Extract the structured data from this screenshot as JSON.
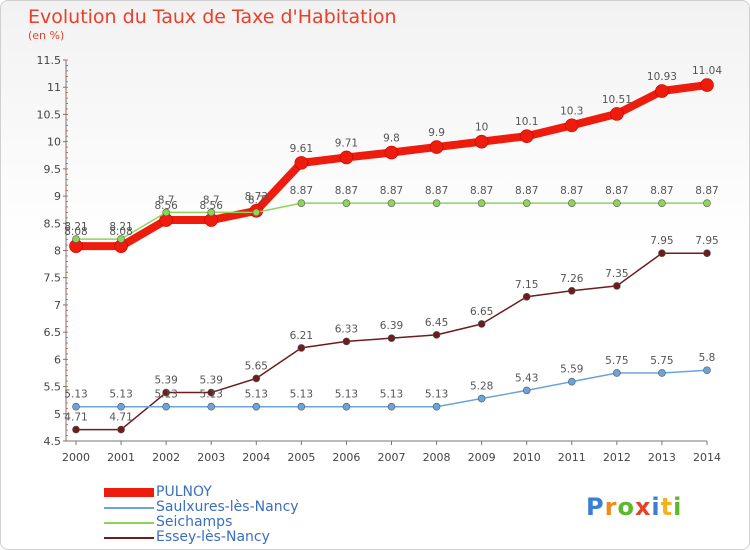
{
  "title": "Evolution du Taux de Taxe d'Habitation",
  "unit": "(en %)",
  "logo": {
    "letters": [
      {
        "ch": "P",
        "color": "#3a7fd0"
      },
      {
        "ch": "r",
        "color": "#f08a1c"
      },
      {
        "ch": "o",
        "color": "#5cb82c"
      },
      {
        "ch": "x",
        "color": "#e8402a"
      },
      {
        "ch": "i",
        "color": "#3a7fd0"
      },
      {
        "ch": "t",
        "color": "#f5b21c"
      },
      {
        "ch": "i",
        "color": "#5cb82c"
      }
    ]
  },
  "chart_data": {
    "type": "line",
    "x": [
      "2000",
      "2001",
      "2002",
      "2003",
      "2004",
      "2005",
      "2006",
      "2007",
      "2008",
      "2009",
      "2010",
      "2011",
      "2012",
      "2013",
      "2014"
    ],
    "ylim": [
      4.5,
      11.5
    ],
    "yticks": [
      "4.5",
      "5",
      "5.5",
      "6",
      "6.5",
      "7",
      "7.5",
      "8",
      "8.5",
      "9",
      "9.5",
      "10",
      "10.5",
      "11",
      "11.5"
    ],
    "grid": false,
    "legend_position": "bottom-left",
    "series": [
      {
        "name": "PULNOY",
        "color": "#ee1c0c",
        "values": [
          8.08,
          8.08,
          8.56,
          8.56,
          8.73,
          9.61,
          9.71,
          9.8,
          9.9,
          10,
          10.1,
          10.3,
          10.51,
          10.93,
          11.04
        ],
        "labels": [
          "8.08",
          "8.08",
          "8.56",
          "8.56",
          "8.73",
          "9.61",
          "9.71",
          "9.8",
          "9.9",
          "10",
          "10.1",
          "10.3",
          "10.51",
          "10.93",
          "11.04"
        ]
      },
      {
        "name": "Saulxures-lès-Nancy",
        "color": "#6aa4d8",
        "values": [
          5.13,
          5.13,
          5.13,
          5.13,
          5.13,
          5.13,
          5.13,
          5.13,
          5.13,
          5.28,
          5.43,
          5.59,
          5.75,
          5.75,
          5.8
        ],
        "labels": [
          "5.13",
          "5.13",
          "5.13",
          "5.13",
          "5.13",
          "5.13",
          "5.13",
          "5.13",
          "5.13",
          "5.28",
          "5.43",
          "5.59",
          "5.75",
          "5.75",
          "5.8"
        ]
      },
      {
        "name": "Seichamps",
        "color": "#8fd45a",
        "values": [
          8.21,
          8.21,
          8.7,
          8.7,
          8.7,
          8.87,
          8.87,
          8.87,
          8.87,
          8.87,
          8.87,
          8.87,
          8.87,
          8.87,
          8.87
        ],
        "labels": [
          "8.21",
          "8.21",
          "8.7",
          "8.7",
          "8.7",
          "8.87",
          "8.87",
          "8.87",
          "8.87",
          "8.87",
          "8.87",
          "8.87",
          "8.87",
          "8.87",
          "8.87"
        ]
      },
      {
        "name": "Essey-lès-Nancy",
        "color": "#6e1c1c",
        "values": [
          4.71,
          4.71,
          5.39,
          5.39,
          5.65,
          6.21,
          6.33,
          6.39,
          6.45,
          6.65,
          7.15,
          7.26,
          7.35,
          7.95,
          7.95
        ],
        "labels": [
          "4.71",
          "4.71",
          "5.39",
          "5.39",
          "5.65",
          "6.21",
          "6.33",
          "6.39",
          "6.45",
          "6.65",
          "7.15",
          "7.26",
          "7.35",
          "7.95",
          "7.95"
        ]
      }
    ]
  }
}
